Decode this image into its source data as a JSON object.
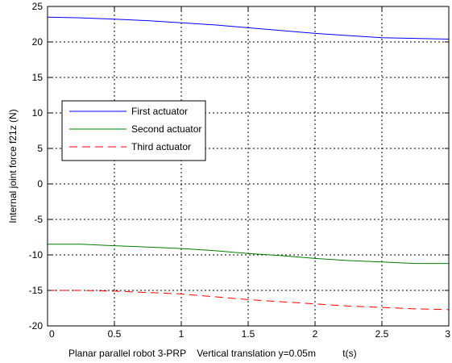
{
  "chart_data": {
    "type": "line",
    "title": "",
    "xlabel": "Planar parallel robot 3-PRP    Vertical translation y=0.05m          t(s)",
    "ylabel": "Internal joint force f21z (N)",
    "xlim": [
      0,
      3
    ],
    "ylim": [
      -20,
      25
    ],
    "xticks": [
      "0",
      "0.5",
      "1",
      "1.5",
      "2",
      "2.5",
      "3"
    ],
    "yticks": [
      "25",
      "20",
      "15",
      "10",
      "5",
      "0",
      "-5",
      "-10",
      "-15",
      "-20"
    ],
    "grid": true,
    "legend_position": "middle-left",
    "x": [
      0,
      0.25,
      0.5,
      0.75,
      1.0,
      1.25,
      1.5,
      1.75,
      2.0,
      2.25,
      2.5,
      2.75,
      3.0
    ],
    "series": [
      {
        "name": "First actuator",
        "color": "#0000ff",
        "style": "solid",
        "values": [
          23.5,
          23.4,
          23.2,
          23.0,
          22.7,
          22.4,
          22.0,
          21.6,
          21.2,
          20.9,
          20.6,
          20.5,
          20.4
        ]
      },
      {
        "name": "Second actuator",
        "color": "#008000",
        "style": "solid",
        "values": [
          -8.5,
          -8.5,
          -8.7,
          -8.9,
          -9.1,
          -9.4,
          -9.8,
          -10.1,
          -10.5,
          -10.8,
          -11.0,
          -11.2,
          -11.2
        ]
      },
      {
        "name": "Third actuator",
        "color": "#ff0000",
        "style": "dashed",
        "values": [
          -15.0,
          -15.0,
          -15.1,
          -15.3,
          -15.5,
          -15.9,
          -16.3,
          -16.6,
          -16.9,
          -17.2,
          -17.4,
          -17.6,
          -17.7
        ]
      }
    ]
  }
}
